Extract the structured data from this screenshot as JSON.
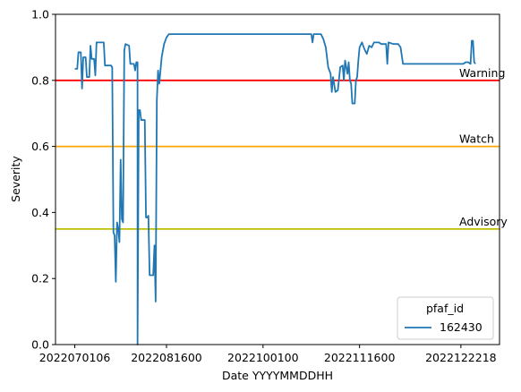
{
  "chart_data": {
    "type": "line",
    "xlabel": "Date YYYYMMDDHH",
    "ylabel": "Severity",
    "xlim": [
      0,
      184
    ],
    "ylim": [
      0,
      1.0
    ],
    "x_ticks": [
      {
        "value": 8,
        "label": "2022070106"
      },
      {
        "value": 46,
        "label": "2022081600"
      },
      {
        "value": 86,
        "label": "2022100100"
      },
      {
        "value": 126,
        "label": "2022111600"
      },
      {
        "value": 168,
        "label": "2022122218"
      }
    ],
    "y_ticks": [
      {
        "value": 0.0,
        "label": "0.0"
      },
      {
        "value": 0.2,
        "label": "0.2"
      },
      {
        "value": 0.4,
        "label": "0.4"
      },
      {
        "value": 0.6,
        "label": "0.6"
      },
      {
        "value": 0.8,
        "label": "0.8"
      },
      {
        "value": 1.0,
        "label": "1.0"
      }
    ],
    "thresholds": [
      {
        "name": "Warning",
        "value": 0.8,
        "color": "#ff0000"
      },
      {
        "name": "Watch",
        "value": 0.6,
        "color": "#ffa500"
      },
      {
        "name": "Advisory",
        "value": 0.35,
        "color": "#bfbf00"
      }
    ],
    "legend": {
      "title": "pfaf_id",
      "position": "lower-right"
    },
    "series": [
      {
        "name": "162430",
        "color": "#1f77b4",
        "points": [
          [
            8,
            0.835
          ],
          [
            9,
            0.835
          ],
          [
            9.5,
            0.885
          ],
          [
            10.5,
            0.885
          ],
          [
            11,
            0.775
          ],
          [
            11.5,
            0.87
          ],
          [
            12.5,
            0.87
          ],
          [
            13,
            0.81
          ],
          [
            14,
            0.81
          ],
          [
            14.5,
            0.905
          ],
          [
            15,
            0.865
          ],
          [
            16,
            0.865
          ],
          [
            16.5,
            0.815
          ],
          [
            17,
            0.915
          ],
          [
            20,
            0.915
          ],
          [
            20.5,
            0.845
          ],
          [
            23,
            0.845
          ],
          [
            23.5,
            0.84
          ],
          [
            24,
            0.34
          ],
          [
            24.5,
            0.33
          ],
          [
            25,
            0.19
          ],
          [
            25.5,
            0.37
          ],
          [
            26,
            0.35
          ],
          [
            26.5,
            0.31
          ],
          [
            27,
            0.56
          ],
          [
            27.5,
            0.38
          ],
          [
            28,
            0.37
          ],
          [
            28.5,
            0.89
          ],
          [
            29,
            0.91
          ],
          [
            30.5,
            0.905
          ],
          [
            31,
            0.85
          ],
          [
            32.5,
            0.85
          ],
          [
            33,
            0.83
          ],
          [
            33.5,
            0.855
          ],
          [
            34,
            0.855
          ],
          [
            34,
            0.0
          ],
          [
            34.5,
            0.71
          ],
          [
            35,
            0.71
          ],
          [
            35.5,
            0.68
          ],
          [
            37,
            0.68
          ],
          [
            37.5,
            0.385
          ],
          [
            38,
            0.385
          ],
          [
            38.5,
            0.39
          ],
          [
            39,
            0.21
          ],
          [
            40.5,
            0.21
          ],
          [
            41,
            0.3
          ],
          [
            41.5,
            0.13
          ],
          [
            42,
            0.74
          ],
          [
            42.5,
            0.83
          ],
          [
            43,
            0.79
          ],
          [
            44,
            0.87
          ],
          [
            45,
            0.91
          ],
          [
            46,
            0.93
          ],
          [
            47,
            0.94
          ],
          [
            106,
            0.94
          ],
          [
            106.5,
            0.915
          ],
          [
            107,
            0.94
          ],
          [
            110,
            0.94
          ],
          [
            111,
            0.925
          ],
          [
            112,
            0.9
          ],
          [
            113,
            0.84
          ],
          [
            114,
            0.82
          ],
          [
            114.5,
            0.765
          ],
          [
            115,
            0.81
          ],
          [
            116,
            0.765
          ],
          [
            117,
            0.77
          ],
          [
            118,
            0.84
          ],
          [
            119,
            0.845
          ],
          [
            119.5,
            0.8
          ],
          [
            120,
            0.86
          ],
          [
            121,
            0.82
          ],
          [
            121.5,
            0.855
          ],
          [
            122,
            0.8
          ],
          [
            122.5,
            0.79
          ],
          [
            123,
            0.73
          ],
          [
            124,
            0.73
          ],
          [
            124.5,
            0.8
          ],
          [
            125,
            0.81
          ],
          [
            125.5,
            0.86
          ],
          [
            126,
            0.9
          ],
          [
            127,
            0.915
          ],
          [
            128,
            0.895
          ],
          [
            129,
            0.88
          ],
          [
            130,
            0.905
          ],
          [
            131,
            0.9
          ],
          [
            132,
            0.915
          ],
          [
            134,
            0.915
          ],
          [
            135,
            0.91
          ],
          [
            137,
            0.91
          ],
          [
            137.5,
            0.85
          ],
          [
            138,
            0.915
          ],
          [
            140,
            0.91
          ],
          [
            142,
            0.91
          ],
          [
            143,
            0.9
          ],
          [
            144,
            0.85
          ],
          [
            152,
            0.85
          ],
          [
            160,
            0.85
          ],
          [
            164,
            0.85
          ],
          [
            169,
            0.85
          ],
          [
            170,
            0.855
          ],
          [
            171,
            0.855
          ],
          [
            172,
            0.85
          ],
          [
            172.5,
            0.92
          ],
          [
            173,
            0.92
          ],
          [
            173.5,
            0.855
          ],
          [
            174,
            0.85
          ]
        ]
      }
    ]
  }
}
